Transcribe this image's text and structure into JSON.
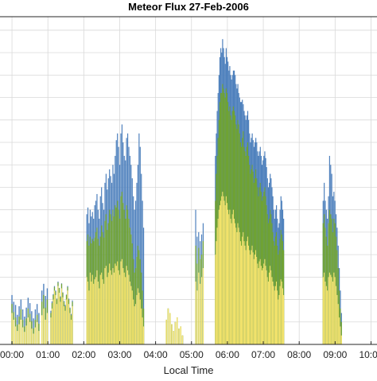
{
  "chart_data": {
    "type": "bar",
    "stacked": true,
    "title": "Meteor Flux 27-Feb-2006",
    "xlabel": "Local Time",
    "ylabel": "",
    "grid": true,
    "xlim": [
      "23:40",
      "10:10"
    ],
    "x_ticks": [
      "00:00",
      "01:00",
      "02:00",
      "03:00",
      "04:00",
      "05:00",
      "06:00",
      "07:00",
      "08:00",
      "09:00",
      "10:00"
    ],
    "colors": {
      "blue": "#4f81bd",
      "green": "#70a330",
      "yellow": "#f5e46c",
      "grid": "#d9d9d9",
      "axis": "#262626"
    },
    "segments": [
      {
        "start": "00:00",
        "step_min": 3,
        "values": [
          [
            70,
            90,
            110
          ],
          [
            55,
            72,
            95
          ],
          [
            40,
            60,
            88
          ],
          [
            30,
            44,
            66
          ],
          [
            45,
            62,
            85
          ],
          [
            55,
            78,
            100
          ],
          [
            38,
            55,
            78
          ],
          [
            28,
            40,
            62
          ],
          [
            42,
            58,
            82
          ],
          [
            60,
            80,
            104
          ],
          [
            50,
            68,
            92
          ],
          [
            35,
            52,
            74
          ],
          [
            24,
            36,
            58
          ],
          [
            38,
            55,
            78
          ],
          [
            50,
            66,
            90
          ],
          [
            30,
            46,
            70
          ]
        ]
      },
      {
        "start": "00:50",
        "step_min": 3,
        "values": [
          [
            65,
            95,
            120
          ],
          [
            80,
            110,
            135
          ],
          [
            55,
            82,
            108
          ],
          [
            70,
            100,
            125
          ]
        ]
      },
      {
        "start": "01:05",
        "step_min": 2,
        "values": [
          [
            60,
            70,
            75
          ],
          [
            80,
            92,
            96
          ],
          [
            100,
            110,
            112
          ],
          [
            120,
            128,
            130
          ],
          [
            110,
            118,
            120
          ],
          [
            90,
            100,
            102
          ],
          [
            130,
            138,
            140
          ],
          [
            115,
            125,
            126
          ],
          [
            95,
            105,
            107
          ],
          [
            125,
            135,
            136
          ],
          [
            105,
            115,
            116
          ],
          [
            85,
            95,
            97
          ],
          [
            75,
            85,
            88
          ],
          [
            100,
            110,
            111
          ],
          [
            120,
            128,
            130
          ],
          [
            90,
            100,
            102
          ],
          [
            70,
            80,
            82
          ],
          [
            55,
            65,
            68
          ],
          [
            85,
            95,
            98
          ]
        ]
      },
      {
        "start": "02:05",
        "step_min": 1.9,
        "values": [
          [
            150,
            230,
            290
          ],
          [
            140,
            245,
            305
          ],
          [
            120,
            220,
            270
          ],
          [
            160,
            240,
            300
          ],
          [
            140,
            225,
            285
          ],
          [
            155,
            235,
            295
          ],
          [
            135,
            230,
            280
          ],
          [
            145,
            238,
            310
          ],
          [
            150,
            250,
            320
          ],
          [
            165,
            260,
            335
          ],
          [
            140,
            235,
            300
          ],
          [
            125,
            220,
            280
          ],
          [
            155,
            240,
            330
          ],
          [
            160,
            265,
            350
          ],
          [
            145,
            250,
            315
          ],
          [
            135,
            238,
            300
          ],
          [
            170,
            275,
            360
          ],
          [
            175,
            290,
            380
          ],
          [
            150,
            255,
            345
          ],
          [
            160,
            270,
            370
          ],
          [
            180,
            300,
            390
          ],
          [
            165,
            290,
            375
          ],
          [
            155,
            275,
            360
          ],
          [
            170,
            300,
            400
          ],
          [
            160,
            285,
            380
          ],
          [
            180,
            310,
            420
          ],
          [
            175,
            305,
            455
          ],
          [
            185,
            320,
            470
          ],
          [
            165,
            300,
            440
          ],
          [
            155,
            280,
            400
          ],
          [
            185,
            330,
            470
          ],
          [
            190,
            340,
            490
          ],
          [
            170,
            315,
            450
          ],
          [
            160,
            300,
            420
          ],
          [
            150,
            280,
            410
          ],
          [
            175,
            310,
            460
          ],
          [
            165,
            300,
            470
          ],
          [
            155,
            280,
            440
          ],
          [
            140,
            260,
            420
          ],
          [
            130,
            245,
            400
          ],
          [
            120,
            225,
            370
          ],
          [
            100,
            190,
            330
          ],
          [
            85,
            160,
            300
          ],
          [
            90,
            170,
            320
          ],
          [
            110,
            195,
            360
          ],
          [
            125,
            220,
            400
          ],
          [
            115,
            210,
            470
          ],
          [
            100,
            190,
            440
          ],
          [
            80,
            160,
            380
          ],
          [
            60,
            120,
            320
          ],
          [
            40,
            80,
            260
          ]
        ]
      },
      {
        "start": "04:15",
        "step_min": 3,
        "values": [
          [
            0,
            0,
            0
          ],
          [
            55,
            55,
            55
          ],
          [
            80,
            80,
            80
          ],
          [
            70,
            70,
            70
          ],
          [
            45,
            45,
            45
          ],
          [
            30,
            30,
            30
          ],
          [
            50,
            50,
            50
          ],
          [
            60,
            60,
            60
          ],
          [
            35,
            35,
            35
          ],
          [
            40,
            40,
            40
          ],
          [
            20,
            20,
            20
          ]
        ]
      },
      {
        "start": "05:07",
        "step_min": 2.5,
        "values": [
          [
            140,
            220,
            300
          ],
          [
            120,
            180,
            240
          ],
          [
            160,
            215,
            250
          ],
          [
            135,
            190,
            230
          ],
          [
            150,
            200,
            245
          ],
          [
            170,
            230,
            270
          ]
        ]
      },
      {
        "start": "05:40",
        "step_min": 1.5,
        "values": [
          [
            200,
            320,
            420
          ],
          [
            230,
            380,
            470
          ],
          [
            260,
            420,
            520
          ],
          [
            280,
            460,
            560
          ],
          [
            300,
            500,
            600
          ],
          [
            310,
            540,
            640
          ],
          [
            320,
            560,
            660
          ],
          [
            330,
            560,
            650
          ],
          [
            340,
            580,
            680
          ],
          [
            330,
            570,
            660
          ],
          [
            320,
            560,
            640
          ],
          [
            310,
            550,
            625
          ],
          [
            330,
            570,
            660
          ],
          [
            315,
            560,
            640
          ],
          [
            300,
            540,
            630
          ],
          [
            290,
            520,
            610
          ],
          [
            300,
            530,
            620
          ],
          [
            280,
            510,
            600
          ],
          [
            270,
            500,
            590
          ],
          [
            290,
            520,
            600
          ],
          [
            300,
            530,
            610
          ],
          [
            280,
            520,
            610
          ],
          [
            270,
            510,
            600
          ],
          [
            260,
            490,
            580
          ],
          [
            250,
            480,
            570
          ],
          [
            270,
            500,
            580
          ],
          [
            260,
            490,
            560
          ],
          [
            250,
            470,
            550
          ],
          [
            230,
            450,
            540
          ],
          [
            220,
            440,
            540
          ],
          [
            240,
            460,
            545
          ],
          [
            250,
            475,
            535
          ],
          [
            230,
            440,
            520
          ],
          [
            220,
            430,
            510
          ],
          [
            210,
            420,
            500
          ],
          [
            230,
            440,
            510
          ],
          [
            240,
            450,
            520
          ],
          [
            220,
            420,
            500
          ],
          [
            210,
            400,
            470
          ],
          [
            200,
            380,
            450
          ],
          [
            210,
            390,
            460
          ],
          [
            220,
            400,
            470
          ],
          [
            205,
            385,
            455
          ],
          [
            190,
            360,
            440
          ],
          [
            200,
            370,
            450
          ],
          [
            210,
            390,
            460
          ],
          [
            195,
            370,
            450
          ],
          [
            180,
            350,
            430
          ],
          [
            170,
            330,
            420
          ],
          [
            185,
            350,
            430
          ],
          [
            190,
            360,
            440
          ],
          [
            175,
            340,
            420
          ],
          [
            165,
            320,
            400
          ],
          [
            170,
            330,
            410
          ],
          [
            180,
            340,
            420
          ],
          [
            190,
            350,
            430
          ],
          [
            175,
            330,
            415
          ],
          [
            165,
            310,
            395
          ],
          [
            150,
            290,
            370
          ],
          [
            140,
            270,
            350
          ],
          [
            160,
            280,
            360
          ],
          [
            175,
            300,
            380
          ],
          [
            165,
            290,
            370
          ],
          [
            150,
            270,
            350
          ],
          [
            140,
            250,
            330
          ],
          [
            130,
            230,
            300
          ],
          [
            120,
            220,
            280
          ],
          [
            130,
            240,
            300
          ],
          [
            140,
            250,
            310
          ],
          [
            120,
            220,
            280
          ],
          [
            100,
            200,
            260
          ],
          [
            110,
            210,
            270
          ],
          [
            130,
            235,
            300
          ],
          [
            145,
            255,
            330
          ],
          [
            140,
            245,
            320
          ],
          [
            125,
            230,
            300
          ],
          [
            110,
            210,
            280
          ]
        ]
      },
      {
        "start": "08:40",
        "step_min": 1.8,
        "values": [
          [
            150,
            270,
            320
          ],
          [
            160,
            290,
            360
          ],
          [
            140,
            260,
            320
          ],
          [
            130,
            240,
            300
          ],
          [
            120,
            220,
            280
          ],
          [
            150,
            270,
            330
          ],
          [
            160,
            300,
            420
          ],
          [
            155,
            290,
            400
          ],
          [
            150,
            280,
            380
          ],
          [
            140,
            250,
            330
          ],
          [
            160,
            280,
            340
          ],
          [
            150,
            270,
            320
          ],
          [
            130,
            240,
            290
          ],
          [
            110,
            210,
            260
          ],
          [
            90,
            170,
            220
          ],
          [
            60,
            120,
            170
          ],
          [
            40,
            80,
            120
          ],
          [
            20,
            50,
            70
          ]
        ]
      }
    ]
  }
}
